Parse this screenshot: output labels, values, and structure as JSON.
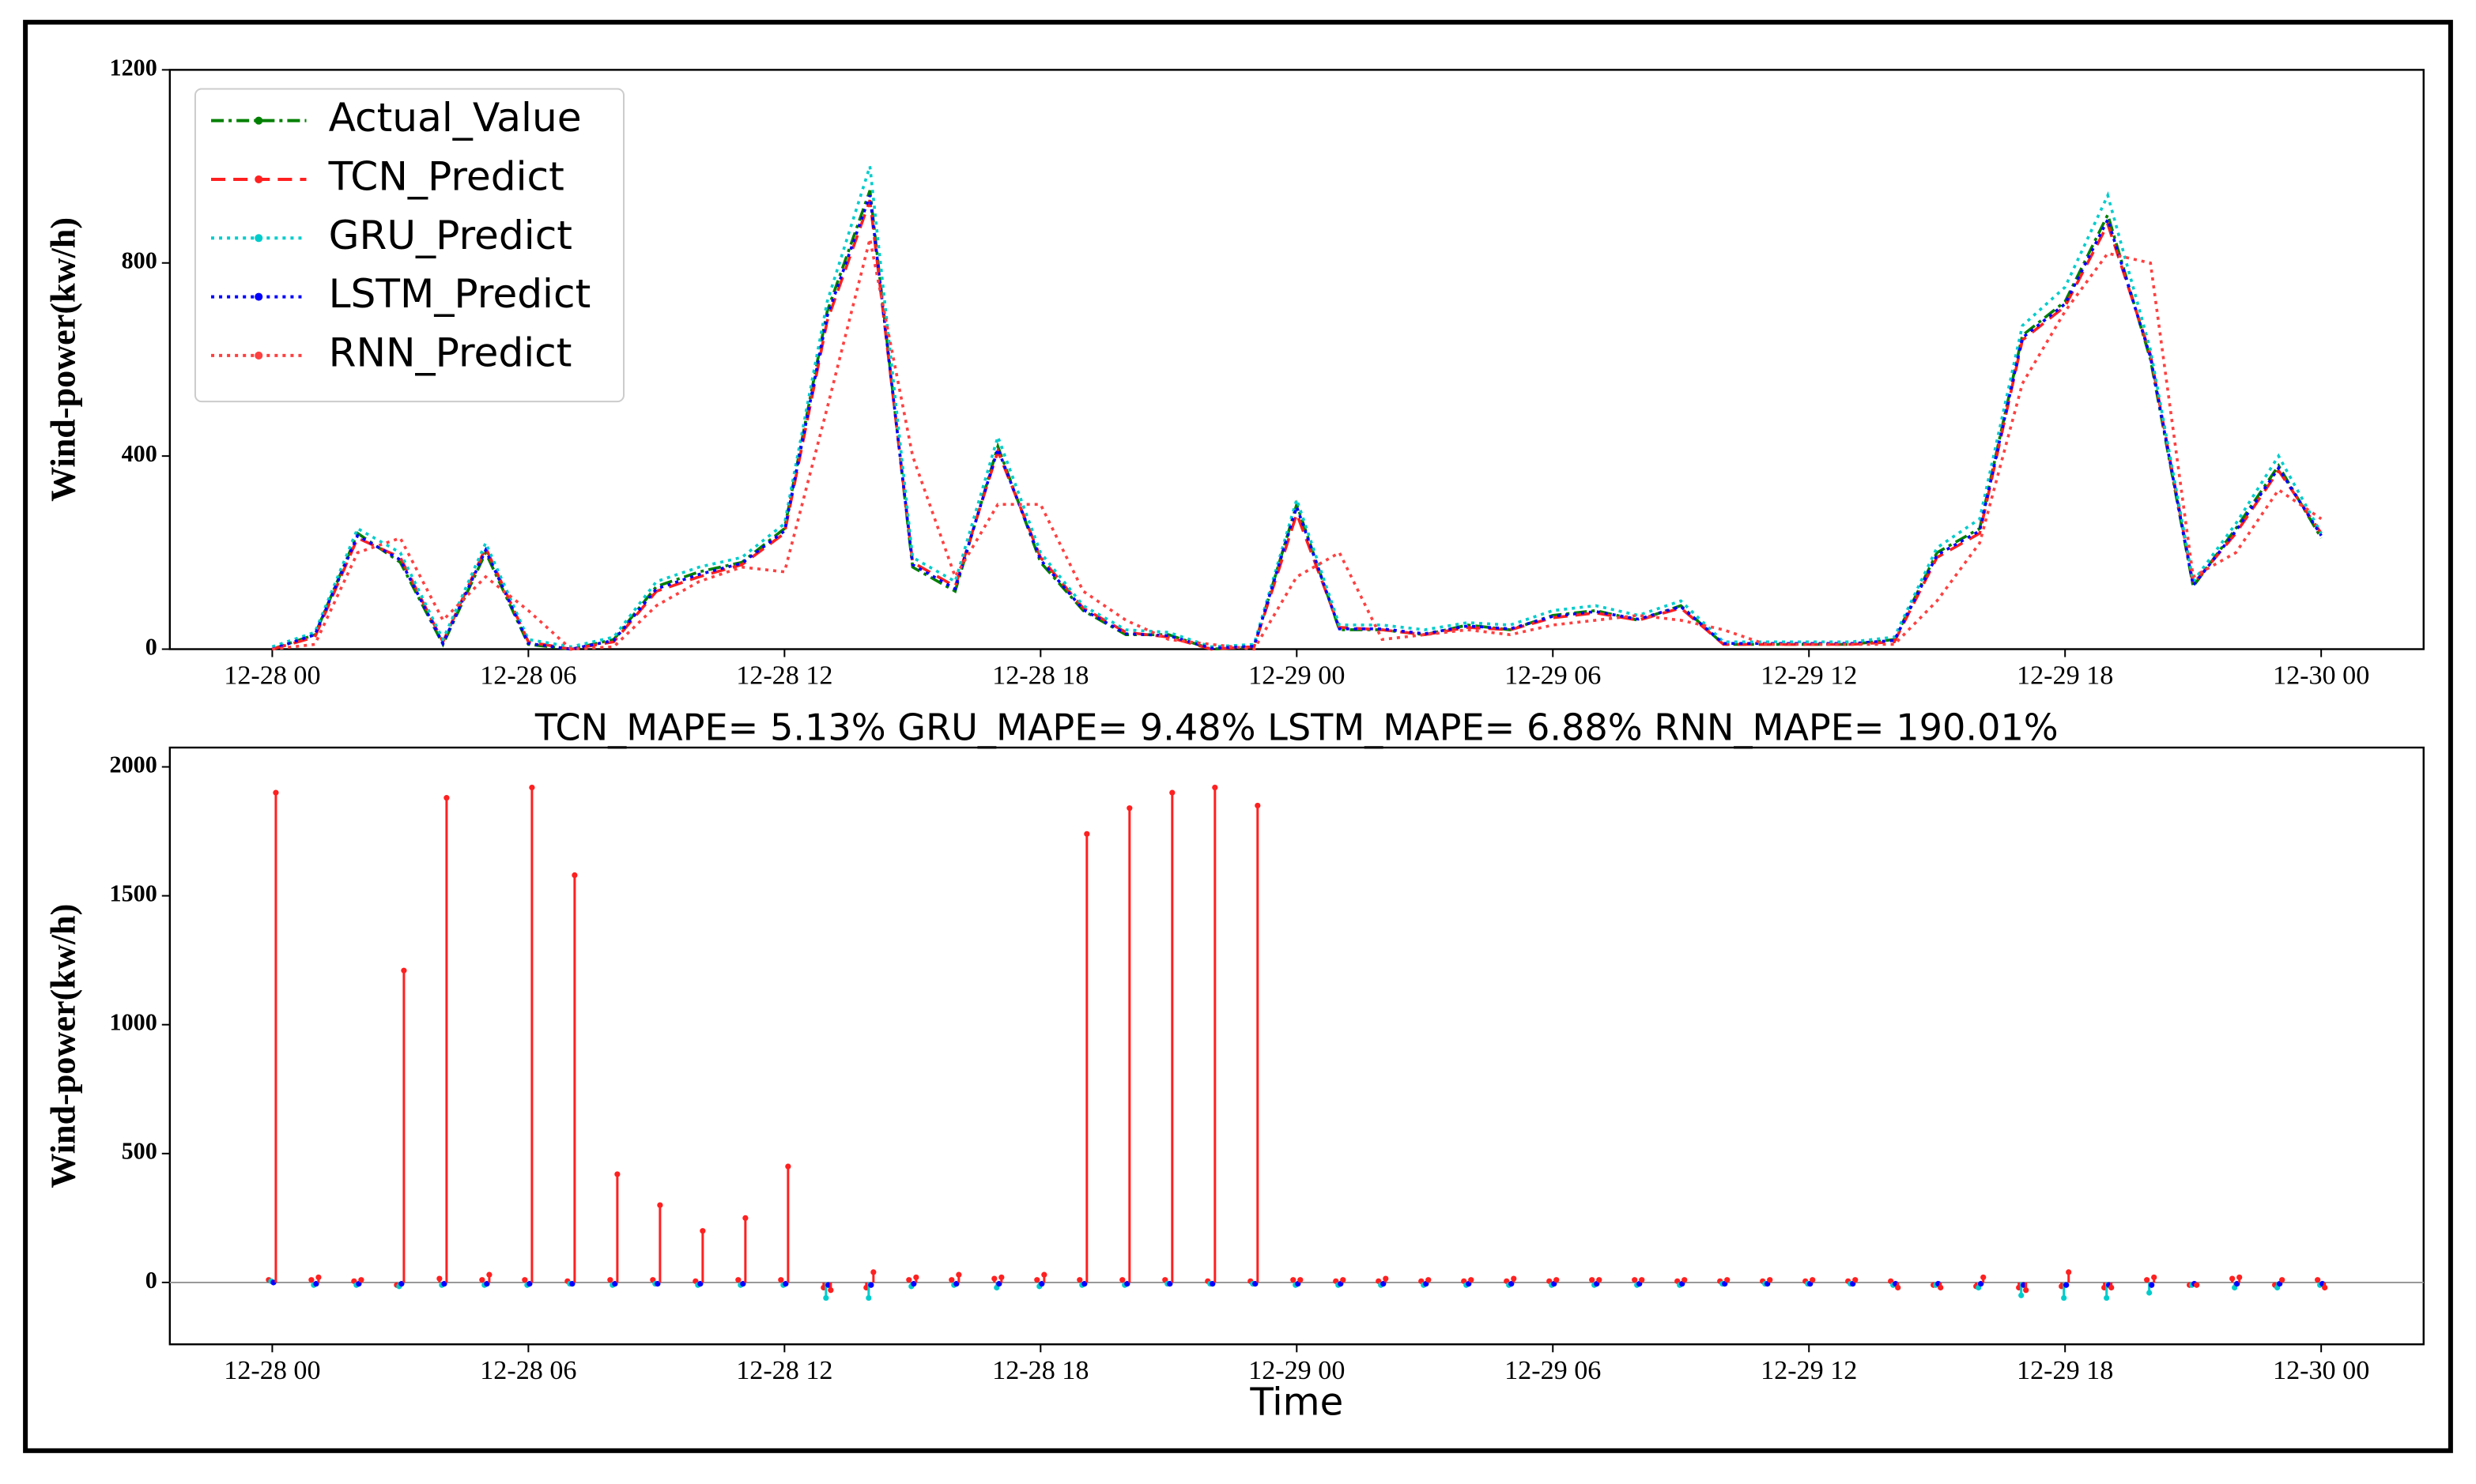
{
  "chart_data": [
    {
      "type": "line",
      "ylabel": "Wind-power(kw/h)",
      "x": [
        "12-28 00",
        "12-28 01",
        "12-28 02",
        "12-28 03",
        "12-28 04",
        "12-28 05",
        "12-28 06",
        "12-28 07",
        "12-28 08",
        "12-28 09",
        "12-28 10",
        "12-28 11",
        "12-28 12",
        "12-28 13",
        "12-28 14",
        "12-28 15",
        "12-28 16",
        "12-28 17",
        "12-28 18",
        "12-28 19",
        "12-28 20",
        "12-28 21",
        "12-28 22",
        "12-28 23",
        "12-29 00",
        "12-29 01",
        "12-29 02",
        "12-29 03",
        "12-29 04",
        "12-29 05",
        "12-29 06",
        "12-29 07",
        "12-29 08",
        "12-29 09",
        "12-29 10",
        "12-29 11",
        "12-29 12",
        "12-29 13",
        "12-29 14",
        "12-29 15",
        "12-29 16",
        "12-29 17",
        "12-29 18",
        "12-29 19",
        "12-29 20",
        "12-29 21",
        "12-29 22",
        "12-29 23",
        "12-30 00"
      ],
      "xlim": [
        "12-27 21:36",
        "12-30 02:24"
      ],
      "xticks": [
        "12-28 00",
        "12-28 06",
        "12-28 12",
        "12-28 18",
        "12-29 00",
        "12-29 06",
        "12-29 12",
        "12-29 18",
        "12-30 00"
      ],
      "ylim": [
        0,
        1200
      ],
      "yticks": [
        0,
        400,
        800,
        1200
      ],
      "legend": "upper left",
      "series": [
        {
          "name": "Actual_Value",
          "color": "#008000",
          "linestyle": "dashdot",
          "values": [
            0,
            30,
            240,
            180,
            10,
            200,
            10,
            0,
            20,
            130,
            160,
            180,
            250,
            700,
            950,
            170,
            120,
            420,
            180,
            80,
            30,
            30,
            0,
            5,
            300,
            40,
            40,
            30,
            50,
            40,
            70,
            80,
            60,
            90,
            10,
            10,
            10,
            10,
            20,
            200,
            250,
            650,
            720,
            900,
            600,
            130,
            250,
            380,
            230
          ]
        },
        {
          "name": "TCN_Predict",
          "color": "#ff2020",
          "linestyle": "dashed",
          "values": [
            0,
            25,
            230,
            190,
            15,
            210,
            15,
            0,
            15,
            120,
            150,
            175,
            240,
            680,
            930,
            180,
            130,
            410,
            190,
            85,
            35,
            25,
            0,
            5,
            280,
            45,
            40,
            30,
            45,
            40,
            65,
            75,
            60,
            85,
            10,
            10,
            10,
            10,
            15,
            190,
            240,
            640,
            710,
            880,
            610,
            135,
            240,
            370,
            240
          ]
        },
        {
          "name": "GRU_Predict",
          "color": "#00cccc",
          "linestyle": "dotted",
          "values": [
            5,
            35,
            250,
            200,
            20,
            220,
            20,
            5,
            25,
            140,
            170,
            190,
            260,
            720,
            1000,
            190,
            140,
            440,
            200,
            90,
            40,
            35,
            5,
            10,
            310,
            50,
            50,
            40,
            55,
            50,
            80,
            90,
            70,
            100,
            15,
            15,
            15,
            15,
            25,
            210,
            270,
            670,
            750,
            940,
            620,
            140,
            260,
            400,
            240
          ]
        },
        {
          "name": "LSTM_Predict",
          "color": "#0000ff",
          "linestyle": "dotted",
          "values": [
            0,
            30,
            235,
            185,
            12,
            205,
            12,
            0,
            18,
            125,
            155,
            178,
            245,
            690,
            940,
            175,
            125,
            415,
            185,
            82,
            32,
            28,
            2,
            6,
            295,
            42,
            42,
            32,
            48,
            42,
            68,
            78,
            62,
            88,
            12,
            12,
            12,
            12,
            18,
            195,
            245,
            645,
            715,
            890,
            605,
            132,
            245,
            375,
            235
          ]
        },
        {
          "name": "RNN_Predict",
          "color": "#ff4040",
          "linestyle": "dotted",
          "values": [
            0,
            10,
            200,
            230,
            60,
            150,
            80,
            0,
            5,
            90,
            140,
            170,
            160,
            500,
            850,
            400,
            150,
            300,
            300,
            120,
            60,
            20,
            10,
            0,
            150,
            200,
            20,
            30,
            40,
            30,
            50,
            60,
            70,
            60,
            40,
            10,
            10,
            10,
            10,
            100,
            220,
            550,
            700,
            820,
            800,
            150,
            200,
            330,
            270
          ]
        }
      ]
    },
    {
      "type": "stem",
      "title": "TCN_MAPE= 5.13%   GRU_MAPE= 9.48%   LSTM_MAPE= 6.88%   RNN_MAPE= 190.01%",
      "xlabel": "Time",
      "ylabel": "Wind-power(kw/h)",
      "x": [
        "12-28 00",
        "12-28 01",
        "12-28 02",
        "12-28 03",
        "12-28 04",
        "12-28 05",
        "12-28 06",
        "12-28 07",
        "12-28 08",
        "12-28 09",
        "12-28 10",
        "12-28 11",
        "12-28 12",
        "12-28 13",
        "12-28 14",
        "12-28 15",
        "12-28 16",
        "12-28 17",
        "12-28 18",
        "12-28 19",
        "12-28 20",
        "12-28 21",
        "12-28 22",
        "12-28 23",
        "12-29 00",
        "12-29 01",
        "12-29 02",
        "12-29 03",
        "12-29 04",
        "12-29 05",
        "12-29 06",
        "12-29 07",
        "12-29 08",
        "12-29 09",
        "12-29 10",
        "12-29 11",
        "12-29 12",
        "12-29 13",
        "12-29 14",
        "12-29 15",
        "12-29 16",
        "12-29 17",
        "12-29 18",
        "12-29 19",
        "12-29 20",
        "12-29 21",
        "12-29 22",
        "12-29 23",
        "12-30 00"
      ],
      "xlim": [
        "12-27 21:36",
        "12-30 02:24"
      ],
      "xticks": [
        "12-28 00",
        "12-28 06",
        "12-28 12",
        "12-28 18",
        "12-29 00",
        "12-29 06",
        "12-29 12",
        "12-29 18",
        "12-30 00"
      ],
      "ylim": [
        -240,
        2075
      ],
      "yticks": [
        0,
        500,
        1000,
        1500,
        2000
      ],
      "series": [
        {
          "color": "#ff2020",
          "values": [
            10,
            10,
            5,
            -10,
            15,
            10,
            10,
            5,
            10,
            10,
            5,
            10,
            10,
            -20,
            -20,
            10,
            10,
            15,
            10,
            10,
            10,
            10,
            5,
            5,
            10,
            5,
            5,
            5,
            5,
            5,
            5,
            10,
            10,
            5,
            5,
            5,
            5,
            5,
            5,
            -10,
            -15,
            -20,
            -15,
            -20,
            10,
            -10,
            15,
            -10,
            10
          ]
        },
        {
          "color": "#00cccc",
          "values": [
            5,
            -10,
            -10,
            -15,
            -10,
            -10,
            -10,
            -5,
            -10,
            -5,
            -10,
            -10,
            -10,
            -60,
            -60,
            -15,
            -10,
            -20,
            -15,
            -10,
            -10,
            -5,
            -5,
            -5,
            -10,
            -10,
            -10,
            -10,
            -10,
            -10,
            -10,
            -10,
            -10,
            -10,
            -5,
            -5,
            -5,
            -5,
            -10,
            -10,
            -20,
            -50,
            -60,
            -60,
            -40,
            -10,
            -20,
            -20,
            -10
          ]
        },
        {
          "color": "#0000ff",
          "values": [
            0,
            -5,
            -5,
            -5,
            -5,
            -5,
            -5,
            -5,
            -5,
            -5,
            -5,
            -5,
            -5,
            -10,
            -10,
            -5,
            -5,
            -5,
            -5,
            -5,
            -5,
            -5,
            -5,
            -5,
            -5,
            -5,
            -5,
            -5,
            -5,
            -5,
            -5,
            -5,
            -5,
            -5,
            -5,
            -5,
            -5,
            -5,
            -5,
            -5,
            -5,
            -10,
            -10,
            -10,
            -10,
            -5,
            -5,
            -5,
            -5
          ]
        },
        {
          "color": "#ff2020",
          "values": [
            1900,
            20,
            10,
            1210,
            1880,
            30,
            1920,
            1580,
            420,
            300,
            200,
            250,
            450,
            -30,
            40,
            20,
            30,
            20,
            30,
            1740,
            1840,
            1900,
            1920,
            1850,
            10,
            10,
            15,
            10,
            10,
            15,
            10,
            10,
            10,
            10,
            10,
            10,
            10,
            10,
            -20,
            -20,
            20,
            -30,
            40,
            -20,
            20,
            -10,
            20,
            10,
            -20
          ]
        }
      ]
    }
  ]
}
